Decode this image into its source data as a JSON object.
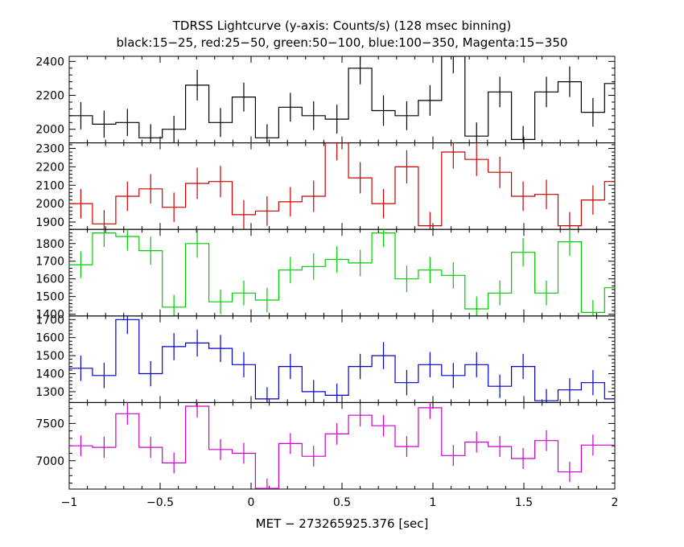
{
  "title": "TDRSS Lightcurve (y-axis: Counts/s) (128 msec binning)",
  "subtitle": "black:15−25, red:25−50, green:50−100, blue:100−350, Magenta:15−350",
  "chart_data": {
    "type": "line",
    "style": "step-with-errorbars",
    "xlabel": "MET − 273265925.376 [sec]",
    "xlim": [
      -1,
      2
    ],
    "x_ticks": [
      -1,
      -0.5,
      0,
      0.5,
      1,
      1.5,
      2
    ],
    "x_tick_labels": [
      "−1",
      "−0.5",
      "0",
      "0.5",
      "1",
      "1.5",
      "2"
    ],
    "bin_width": 0.128,
    "x_start": -1.0,
    "panels": [
      {
        "name": "black:15−25",
        "color": "#000000",
        "ylim": [
          1920,
          2430
        ],
        "y_ticks": [
          2000,
          2200,
          2400
        ],
        "values": [
          2080,
          2030,
          2040,
          1950,
          2000,
          2260,
          2040,
          2190,
          1950,
          2130,
          2080,
          2060,
          2360,
          2110,
          2080,
          2170,
          2430,
          1960,
          2220,
          1940,
          2220,
          2280,
          2100,
          2270
        ],
        "errors": [
          80,
          80,
          80,
          80,
          80,
          90,
          85,
          85,
          80,
          85,
          85,
          85,
          95,
          90,
          85,
          90,
          100,
          80,
          90,
          80,
          90,
          90,
          85,
          90
        ]
      },
      {
        "name": "red:25−50",
        "color": "#cc0000",
        "ylim": [
          1860,
          2330
        ],
        "y_ticks": [
          1900,
          2000,
          2100,
          2200,
          2300
        ],
        "values": [
          2000,
          1890,
          2040,
          2080,
          1980,
          2110,
          2120,
          1940,
          1960,
          2010,
          2040,
          2330,
          2140,
          2000,
          2200,
          1880,
          2280,
          2240,
          2170,
          2040,
          2050,
          1880,
          2020,
          2120
        ],
        "errors": [
          80,
          75,
          80,
          80,
          80,
          85,
          85,
          80,
          80,
          80,
          85,
          95,
          85,
          80,
          90,
          75,
          90,
          90,
          85,
          80,
          80,
          75,
          80,
          85
        ]
      },
      {
        "name": "green:50−100",
        "color": "#00cc00",
        "ylim": [
          1390,
          1880
        ],
        "y_ticks": [
          1400,
          1500,
          1600,
          1700,
          1800
        ],
        "values": [
          1680,
          1860,
          1840,
          1760,
          1440,
          1800,
          1470,
          1520,
          1480,
          1650,
          1670,
          1710,
          1690,
          1860,
          1600,
          1650,
          1620,
          1430,
          1520,
          1750,
          1520,
          1810,
          1410,
          1550
        ],
        "errors": [
          75,
          80,
          80,
          80,
          70,
          80,
          70,
          70,
          70,
          75,
          75,
          75,
          75,
          80,
          75,
          75,
          75,
          70,
          70,
          80,
          70,
          80,
          70,
          75
        ]
      },
      {
        "name": "blue:100−350",
        "color": "#0000cc",
        "ylim": [
          1240,
          1720
        ],
        "y_ticks": [
          1300,
          1400,
          1500,
          1600,
          1700
        ],
        "values": [
          1430,
          1390,
          1700,
          1400,
          1550,
          1570,
          1540,
          1450,
          1260,
          1440,
          1300,
          1280,
          1440,
          1500,
          1350,
          1450,
          1390,
          1450,
          1330,
          1440,
          1250,
          1310,
          1350,
          1260
        ],
        "errors": [
          70,
          70,
          80,
          70,
          75,
          75,
          75,
          70,
          65,
          70,
          65,
          65,
          70,
          75,
          70,
          70,
          70,
          70,
          65,
          70,
          65,
          65,
          70,
          65
        ]
      },
      {
        "name": "Magenta:15−350",
        "color": "#cc00cc",
        "ylim": [
          6620,
          7780
        ],
        "y_ticks": [
          7000,
          7500
        ],
        "values": [
          7200,
          7180,
          7630,
          7180,
          6970,
          7730,
          7150,
          7100,
          6630,
          7230,
          7060,
          7360,
          7610,
          7470,
          7190,
          7710,
          7070,
          7250,
          7190,
          7030,
          7270,
          6850,
          7210,
          7210
        ],
        "errors": [
          140,
          140,
          150,
          140,
          140,
          150,
          140,
          140,
          130,
          140,
          140,
          145,
          150,
          145,
          140,
          150,
          140,
          140,
          140,
          140,
          140,
          135,
          140,
          140
        ]
      }
    ]
  }
}
